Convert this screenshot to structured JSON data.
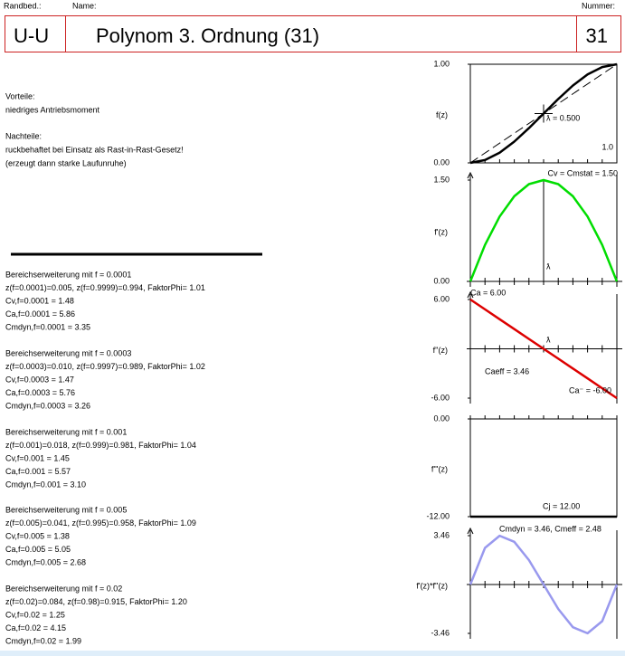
{
  "header": {
    "randbed_label": "Randbed.:",
    "name_label": "Name:",
    "nummer_label": "Nummer:",
    "code": "U-U",
    "title": "Polynom 3. Ordnung (31)",
    "number": "31"
  },
  "notes": [
    "Vorteile:",
    "niedriges Antriebsmoment",
    "Nachteile:",
    "ruckbehaftet bei Einsatz als Rast-in-Rast-Gesetz!",
    "(erzeugt dann starke Laufunruhe)"
  ],
  "ranges": [
    [
      "Bereichserweiterung mit f = 0.0001",
      "z(f=0.0001)=0.005, z(f=0.9999)=0.994, FaktorPhi= 1.01",
      "Cv,f=0.0001 = 1.48",
      "Ca,f=0.0001 = 5.86",
      "Cmdyn,f=0.0001 = 3.35"
    ],
    [
      "Bereichserweiterung mit f = 0.0003",
      "z(f=0.0003)=0.010, z(f=0.9997)=0.989, FaktorPhi= 1.02",
      "Cv,f=0.0003 = 1.47",
      "Ca,f=0.0003 = 5.76",
      "Cmdyn,f=0.0003 = 3.26"
    ],
    [
      "Bereichserweiterung mit f = 0.001",
      "z(f=0.001)=0.018, z(f=0.999)=0.981, FaktorPhi= 1.04",
      "Cv,f=0.001 = 1.45",
      "Ca,f=0.001 = 5.57",
      "Cmdyn,f=0.001 = 3.10"
    ],
    [
      "Bereichserweiterung mit f = 0.005",
      "z(f=0.005)=0.041, z(f=0.995)=0.958, FaktorPhi= 1.09",
      "Cv,f=0.005 = 1.38",
      "Ca,f=0.005 = 5.05",
      "Cmdyn,f=0.005 = 2.68"
    ],
    [
      "Bereichserweiterung mit f = 0.02",
      "z(f=0.02)=0.084, z(f=0.98)=0.915, FaktorPhi= 1.20",
      "Cv,f=0.02 = 1.25",
      "Ca,f=0.02 = 4.15",
      "Cmdyn,f=0.02 = 1.99"
    ]
  ],
  "plots": [
    {
      "type": "line",
      "ylabel": "f(z)",
      "color": "#000000",
      "xlim": [
        0,
        1
      ],
      "ylim": [
        0,
        1
      ],
      "yticks": [
        {
          "value": 0,
          "label": "0.00"
        },
        {
          "value": 1,
          "label": "1.00"
        }
      ],
      "xticks": [
        {
          "value": 1,
          "label": "1.0"
        }
      ],
      "x": [
        0,
        0.1,
        0.2,
        0.3,
        0.4,
        0.5,
        0.6,
        0.7,
        0.8,
        0.9,
        1
      ],
      "values": [
        0,
        0.028,
        0.104,
        0.216,
        0.352,
        0.5,
        0.648,
        0.784,
        0.896,
        0.972,
        1
      ],
      "annotations": [
        "ƛ = 0.500"
      ]
    },
    {
      "type": "line",
      "ylabel": "f'(z)",
      "color": "#00dd00",
      "xlim": [
        0,
        1
      ],
      "ylim": [
        0,
        1.5
      ],
      "yticks": [
        {
          "value": 0,
          "label": "0.00"
        },
        {
          "value": 1.5,
          "label": "1.50"
        }
      ],
      "x": [
        0,
        0.1,
        0.2,
        0.3,
        0.4,
        0.5,
        0.6,
        0.7,
        0.8,
        0.9,
        1
      ],
      "values": [
        0,
        0.54,
        0.96,
        1.26,
        1.44,
        1.5,
        1.44,
        1.26,
        0.96,
        0.54,
        0
      ],
      "annotations": [
        "Cv = Cmstat = 1.50",
        "ƛ"
      ]
    },
    {
      "type": "line",
      "ylabel": "f''(z)",
      "color": "#dd0000",
      "xlim": [
        0,
        1
      ],
      "ylim": [
        -6,
        6
      ],
      "yticks": [
        {
          "value": -6,
          "label": "-6.00"
        },
        {
          "value": 6,
          "label": "6.00"
        }
      ],
      "x": [
        0,
        0.1,
        0.2,
        0.3,
        0.4,
        0.5,
        0.6,
        0.7,
        0.8,
        0.9,
        1
      ],
      "values": [
        6,
        4.8,
        3.6,
        2.4,
        1.2,
        0,
        -1.2,
        -2.4,
        -3.6,
        -4.8,
        -6
      ],
      "annotations": [
        "Ca = 6.00",
        "Caeff = 3.46",
        "Ca⁻ = -6.00",
        "ƛ"
      ]
    },
    {
      "type": "line",
      "ylabel": "f'''(z)",
      "color": "#000000",
      "xlim": [
        0,
        1
      ],
      "ylim": [
        -12,
        0
      ],
      "yticks": [
        {
          "value": -12,
          "label": "-12.00"
        },
        {
          "value": 0,
          "label": "0.00"
        }
      ],
      "x": [
        0,
        0.1,
        0.2,
        0.3,
        0.4,
        0.5,
        0.6,
        0.7,
        0.8,
        0.9,
        1
      ],
      "values": [
        -12,
        -12,
        -12,
        -12,
        -12,
        -12,
        -12,
        -12,
        -12,
        -12,
        -12
      ],
      "annotations": [
        "Cj = 12.00"
      ]
    },
    {
      "type": "line",
      "ylabel": "f'(z)*f''(z)",
      "color": "#9999ee",
      "xlim": [
        0,
        1
      ],
      "ylim": [
        -3.46,
        3.46
      ],
      "yticks": [
        {
          "value": -3.46,
          "label": "-3.46"
        },
        {
          "value": 3.46,
          "label": "3.46"
        }
      ],
      "x": [
        0,
        0.1,
        0.2,
        0.3,
        0.4,
        0.5,
        0.6,
        0.7,
        0.8,
        0.9,
        1
      ],
      "values": [
        0,
        2.592,
        3.456,
        3.024,
        1.728,
        0,
        -1.728,
        -3.024,
        -3.456,
        -2.592,
        0
      ],
      "annotations": [
        "Cmdyn = 3.46, Cmeff = 2.48"
      ]
    }
  ]
}
